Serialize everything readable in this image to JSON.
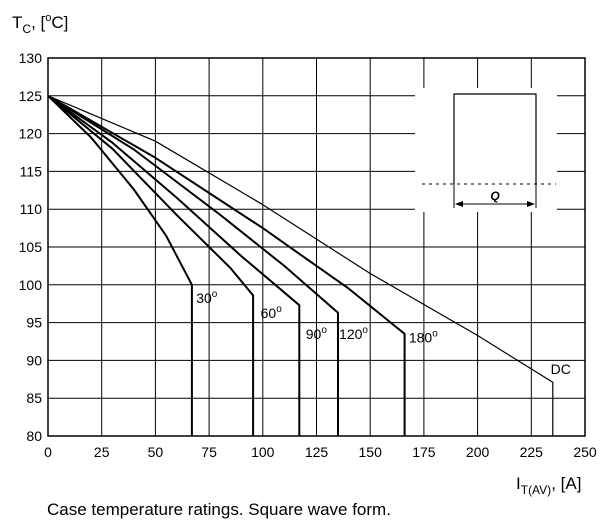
{
  "chart_data": {
    "type": "line",
    "title": "",
    "caption": "Case temperature ratings. Square wave form.",
    "ylabel": {
      "main": "T",
      "sub": "C",
      "unit_pre": ", [",
      "sup": "o",
      "unit_post": "C]"
    },
    "xlabel": {
      "main": "I",
      "sub": "T(AV)",
      "unit": ", [A]"
    },
    "xlim": [
      0,
      250
    ],
    "ylim": [
      80,
      130
    ],
    "xticks": [
      0,
      25,
      50,
      75,
      100,
      125,
      150,
      175,
      200,
      225,
      250
    ],
    "yticks": [
      80,
      85,
      90,
      95,
      100,
      105,
      110,
      115,
      120,
      125,
      130
    ],
    "grid": true,
    "series": [
      {
        "name": "30",
        "points": [
          [
            0,
            125
          ],
          [
            20,
            119.5
          ],
          [
            40,
            112.6
          ],
          [
            55,
            106.5
          ],
          [
            67,
            100
          ],
          [
            67,
            80
          ]
        ]
      },
      {
        "name": "60",
        "points": [
          [
            0,
            125
          ],
          [
            30,
            118
          ],
          [
            60,
            109.2
          ],
          [
            85,
            102.2
          ],
          [
            95.5,
            98.6
          ],
          [
            95.5,
            80
          ]
        ]
      },
      {
        "name": "90",
        "points": [
          [
            0,
            125
          ],
          [
            30,
            118.8
          ],
          [
            60,
            111.5
          ],
          [
            90,
            103.8
          ],
          [
            117,
            97.3
          ],
          [
            117,
            80
          ]
        ]
      },
      {
        "name": "120",
        "points": [
          [
            0,
            125
          ],
          [
            40,
            117.9
          ],
          [
            80,
            109.3
          ],
          [
            110,
            102.5
          ],
          [
            135,
            96.3
          ],
          [
            135,
            80
          ]
        ]
      },
      {
        "name": "180",
        "points": [
          [
            0,
            125
          ],
          [
            50,
            116.8
          ],
          [
            100,
            107.5
          ],
          [
            140,
            99.5
          ],
          [
            166,
            93.5
          ],
          [
            166,
            80
          ]
        ]
      },
      {
        "name": "DC",
        "points": [
          [
            0,
            125
          ],
          [
            50,
            119
          ],
          [
            100,
            110.6
          ],
          [
            150,
            101.5
          ],
          [
            200,
            93.3
          ],
          [
            235,
            87.1
          ],
          [
            235,
            80
          ]
        ]
      }
    ],
    "curve_labels": [
      {
        "name": "30",
        "text": "30",
        "sup": "o",
        "x": 69,
        "y": 97.6
      },
      {
        "name": "60",
        "text": "60",
        "sup": "o",
        "x": 99,
        "y": 95.6
      },
      {
        "name": "90",
        "text": "90",
        "sup": "o",
        "x": 120,
        "y": 92.8
      },
      {
        "name": "120",
        "text": "120",
        "sup": "o",
        "x": 135.5,
        "y": 92.8
      },
      {
        "name": "180",
        "text": "180",
        "sup": "o",
        "x": 168,
        "y": 92.4
      },
      {
        "name": "DC",
        "text": "DC",
        "sup": "",
        "x": 234,
        "y": 88.2
      }
    ],
    "inset": {
      "label": "Q"
    }
  }
}
